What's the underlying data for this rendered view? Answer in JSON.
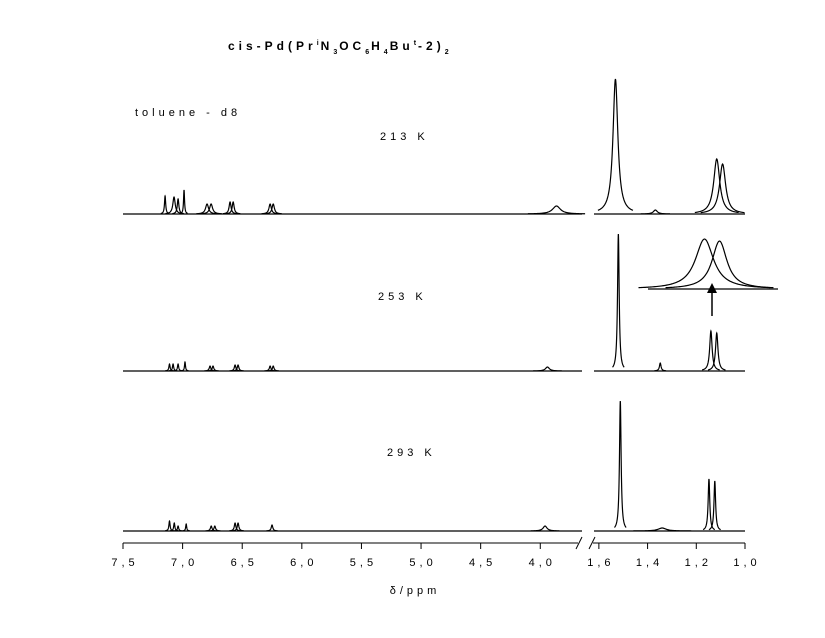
{
  "chart_data": {
    "type": "nmr",
    "title_parts": [
      "cis-Pd(Pr",
      "i",
      "N",
      "3",
      "OC",
      "6",
      "H",
      "4",
      "Bu",
      "t",
      "-2)",
      "2"
    ],
    "solvent": "toluene - d8",
    "xlabel": "δ/ppm",
    "segments": [
      {
        "xlim": [
          7.5,
          3.65
        ],
        "xticks": [
          {
            "value": 7.5,
            "label": "7,5"
          },
          {
            "value": 7.0,
            "label": "7,0"
          },
          {
            "value": 6.5,
            "label": "6,5"
          },
          {
            "value": 6.0,
            "label": "6,0"
          },
          {
            "value": 5.5,
            "label": "5,5"
          },
          {
            "value": 5.0,
            "label": "5,0"
          },
          {
            "value": 4.5,
            "label": "4,5"
          },
          {
            "value": 4.0,
            "label": "4,0"
          }
        ]
      },
      {
        "xlim": [
          1.62,
          1.0
        ],
        "xticks": [
          {
            "value": 1.6,
            "label": "1,6"
          },
          {
            "value": 1.4,
            "label": "1,4"
          },
          {
            "value": 1.2,
            "label": "1,2"
          },
          {
            "value": 1.0,
            "label": "1,0"
          }
        ]
      }
    ],
    "series": [
      {
        "name": "213 K",
        "positions": [
          7.147,
          7.072,
          7.038,
          6.988,
          6.795,
          6.761,
          6.602,
          6.576,
          6.266,
          6.24,
          3.864,
          1.532,
          1.368,
          1.116,
          1.092
        ],
        "heights": [
          18,
          17,
          15,
          24,
          10,
          10,
          12,
          12,
          10,
          10,
          8,
          135,
          4,
          55,
          50
        ],
        "widths": [
          0.006,
          0.012,
          0.008,
          0.005,
          0.015,
          0.015,
          0.01,
          0.01,
          0.012,
          0.012,
          0.04,
          0.012,
          0.01,
          0.015,
          0.015
        ]
      },
      {
        "name": "253 K",
        "positions": [
          7.11,
          7.08,
          7.038,
          6.98,
          6.77,
          6.745,
          6.56,
          6.535,
          6.266,
          6.24,
          3.94,
          1.52,
          1.348,
          1.14,
          1.116
        ],
        "heights": [
          7,
          7,
          7,
          9,
          5,
          5,
          6,
          6,
          5,
          5,
          4,
          137,
          8,
          40,
          38
        ],
        "widths": [
          0.006,
          0.006,
          0.006,
          0.005,
          0.008,
          0.008,
          0.008,
          0.008,
          0.008,
          0.008,
          0.02,
          0.004,
          0.004,
          0.006,
          0.006
        ]
      },
      {
        "name": "293 K",
        "positions": [
          7.11,
          7.07,
          7.038,
          6.97,
          6.76,
          6.73,
          6.56,
          6.535,
          6.25,
          3.96,
          1.512,
          1.34,
          1.148,
          1.124
        ],
        "heights": [
          10,
          8,
          5,
          7,
          5,
          5,
          8,
          8,
          6,
          5,
          130,
          3,
          52,
          50
        ],
        "widths": [
          0.006,
          0.006,
          0.006,
          0.005,
          0.008,
          0.008,
          0.008,
          0.008,
          0.008,
          0.02,
          0.004,
          0.02,
          0.004,
          0.004
        ]
      }
    ],
    "inset": {
      "positions": [
        1.15,
        1.12
      ],
      "heights": [
        50,
        48
      ],
      "widths": [
        0.022,
        0.018
      ]
    }
  }
}
